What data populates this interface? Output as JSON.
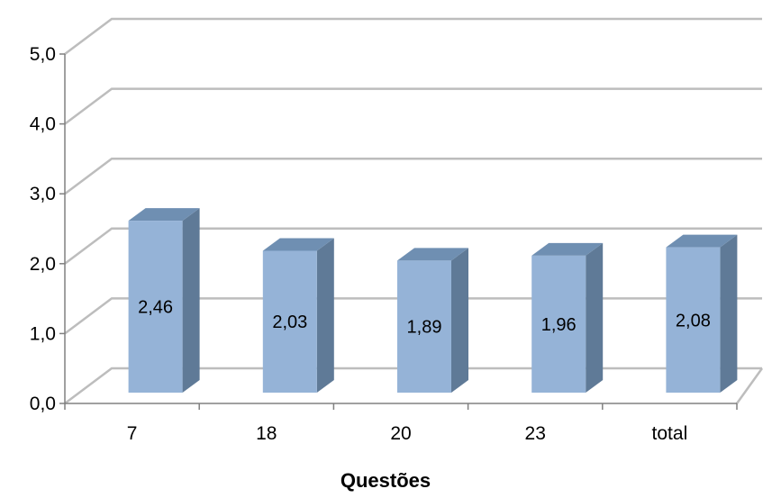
{
  "chart_data": {
    "type": "bar",
    "categories": [
      "7",
      "18",
      "20",
      "23",
      "total"
    ],
    "values": [
      2.46,
      2.03,
      1.89,
      1.96,
      2.08
    ],
    "value_labels": [
      "2,46",
      "2,03",
      "1,89",
      "1,96",
      "2,08"
    ],
    "title": "",
    "xlabel": "Questões",
    "ylabel": "",
    "ylim": [
      0,
      5
    ],
    "yticks": [
      0,
      1,
      2,
      3,
      4,
      5
    ],
    "ytick_labels": [
      "0,0",
      "1,0",
      "2,0",
      "3,0",
      "4,0",
      "5,0"
    ],
    "grid": true,
    "legend": "none",
    "style": "3d-column",
    "colors": {
      "bar_front": "#95b3d7",
      "bar_top": "#6f8fb2",
      "bar_side": "#5f7a97",
      "grid": "#bdbdbd",
      "axis": "#808080"
    }
  }
}
